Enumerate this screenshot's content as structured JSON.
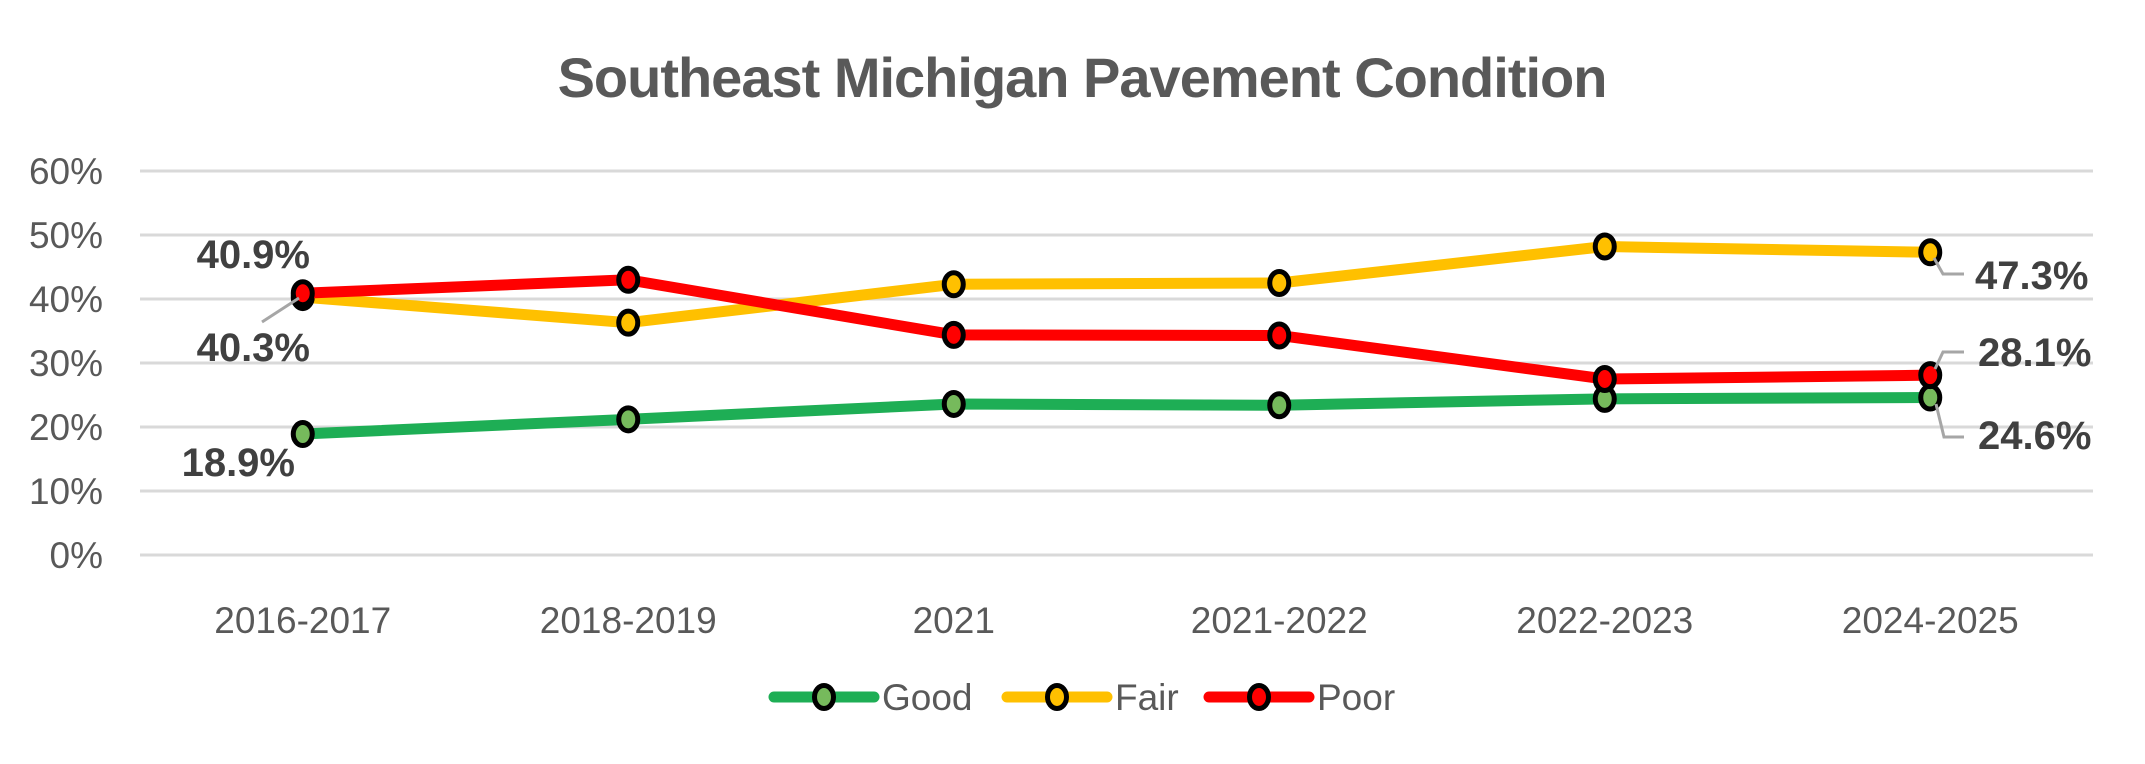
{
  "chart_data": {
    "type": "line",
    "title": "Southeast Michigan Pavement Condition",
    "categories": [
      "2016-2017",
      "2018-2019",
      "2021",
      "2021-2022",
      "2022-2023",
      "2024-2025"
    ],
    "series": [
      {
        "name": "Good",
        "color": "#1EAE55",
        "marker_fill": "#76BA5C",
        "values": [
          18.9,
          21.2,
          23.6,
          23.4,
          24.4,
          24.6
        ]
      },
      {
        "name": "Fair",
        "color": "#FFC000",
        "marker_fill": "#FFC000",
        "values": [
          40.3,
          36.3,
          42.3,
          42.5,
          48.2,
          47.3
        ]
      },
      {
        "name": "Poor",
        "color": "#FF0000",
        "marker_fill": "#FF0000",
        "values": [
          40.9,
          43.0,
          34.4,
          34.3,
          27.5,
          28.1
        ]
      }
    ],
    "ylim": [
      0,
      60
    ],
    "ytick_step": 10,
    "ytick_labels": [
      "0%",
      "10%",
      "20%",
      "30%",
      "40%",
      "50%",
      "60%"
    ],
    "grid": true,
    "legend_position": "bottom",
    "legend_labels": [
      "Good",
      "Fair",
      "Poor"
    ],
    "annotations": [
      {
        "text": "40.9%",
        "series": "Poor",
        "point_index": 0,
        "side": "left"
      },
      {
        "text": "40.3%",
        "series": "Fair",
        "point_index": 0,
        "side": "left"
      },
      {
        "text": "18.9%",
        "series": "Good",
        "point_index": 0,
        "side": "left"
      },
      {
        "text": "47.3%",
        "series": "Fair",
        "point_index": 5,
        "side": "right"
      },
      {
        "text": "28.1%",
        "series": "Poor",
        "point_index": 5,
        "side": "right"
      },
      {
        "text": "24.6%",
        "series": "Good",
        "point_index": 5,
        "side": "right"
      }
    ],
    "colors": {
      "title_text": "#595959",
      "axis_text": "#595959",
      "data_label_text": "#404040",
      "gridline": "#D9D9D9",
      "leader_line": "#A6A6A6",
      "marker_outline": "#000000",
      "background": "#FFFFFF"
    }
  }
}
